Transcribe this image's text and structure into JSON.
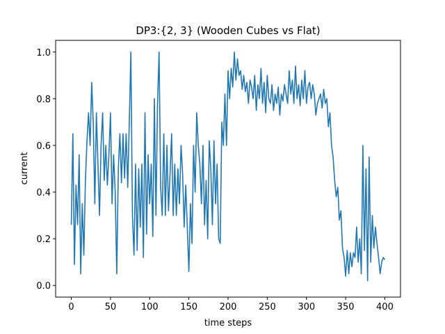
{
  "chart_data": {
    "type": "line",
    "title": "DP3:{2, 3} (Wooden Cubes vs Flat)",
    "xlabel": "time steps",
    "ylabel": "current",
    "x": [
      0,
      2,
      4,
      6,
      8,
      10,
      12,
      14,
      16,
      18,
      20,
      22,
      24,
      26,
      28,
      30,
      32,
      34,
      36,
      38,
      40,
      42,
      44,
      46,
      48,
      50,
      52,
      54,
      56,
      58,
      60,
      62,
      64,
      66,
      68,
      70,
      72,
      74,
      76,
      78,
      80,
      82,
      84,
      86,
      88,
      90,
      92,
      94,
      96,
      98,
      100,
      102,
      104,
      106,
      108,
      110,
      112,
      114,
      116,
      118,
      120,
      122,
      124,
      126,
      128,
      130,
      132,
      134,
      136,
      138,
      140,
      142,
      144,
      146,
      148,
      150,
      152,
      154,
      156,
      158,
      160,
      162,
      164,
      166,
      168,
      170,
      172,
      174,
      176,
      178,
      180,
      182,
      184,
      186,
      188,
      190,
      192,
      194,
      196,
      198,
      200,
      202,
      204,
      206,
      208,
      210,
      212,
      214,
      216,
      218,
      220,
      222,
      224,
      226,
      228,
      230,
      232,
      234,
      236,
      238,
      240,
      242,
      244,
      246,
      248,
      250,
      252,
      254,
      256,
      258,
      260,
      262,
      264,
      266,
      268,
      270,
      272,
      274,
      276,
      278,
      280,
      282,
      284,
      286,
      288,
      290,
      292,
      294,
      296,
      298,
      300,
      302,
      304,
      306,
      308,
      310,
      312,
      314,
      316,
      318,
      320,
      322,
      324,
      326,
      328,
      330,
      332,
      334,
      336,
      338,
      340,
      342,
      344,
      346,
      348,
      350,
      352,
      354,
      356,
      358,
      360,
      362,
      364,
      366,
      368,
      370,
      372,
      374,
      376,
      378,
      380,
      382,
      384,
      386,
      388,
      390,
      392,
      394,
      396,
      398,
      400
    ],
    "series": [
      {
        "color": "#1f77b4",
        "values": [
          0.26,
          0.65,
          0.09,
          0.43,
          0.26,
          0.56,
          0.05,
          0.35,
          0.13,
          0.45,
          0.62,
          0.74,
          0.6,
          0.87,
          0.7,
          0.35,
          0.74,
          0.52,
          0.3,
          0.6,
          0.74,
          0.45,
          0.6,
          0.43,
          0.56,
          0.74,
          0.35,
          0.56,
          0.4,
          0.05,
          0.5,
          0.65,
          0.44,
          0.65,
          0.46,
          0.65,
          0.42,
          0.7,
          1.0,
          0.3,
          0.13,
          0.52,
          0.15,
          0.5,
          0.25,
          0.52,
          0.12,
          0.74,
          0.22,
          0.56,
          0.35,
          0.52,
          0.21,
          0.8,
          0.3,
          0.78,
          1.0,
          0.42,
          0.3,
          0.65,
          0.3,
          0.6,
          0.32,
          0.48,
          0.65,
          0.3,
          0.52,
          0.3,
          0.5,
          0.35,
          0.6,
          0.48,
          0.25,
          0.43,
          0.25,
          0.06,
          0.35,
          0.18,
          0.6,
          0.4,
          0.74,
          0.6,
          0.52,
          0.35,
          0.6,
          0.26,
          0.45,
          0.2,
          0.62,
          0.5,
          0.26,
          0.62,
          0.35,
          0.52,
          0.2,
          0.18,
          0.7,
          0.6,
          0.82,
          0.6,
          0.92,
          0.8,
          0.93,
          0.85,
          1.0,
          0.88,
          0.97,
          0.9,
          0.92,
          0.84,
          0.9,
          0.83,
          0.87,
          0.78,
          0.88,
          0.85,
          0.8,
          0.9,
          0.75,
          0.86,
          0.8,
          0.93,
          0.78,
          0.87,
          0.74,
          0.9,
          0.8,
          0.78,
          0.86,
          0.75,
          0.82,
          0.78,
          0.85,
          0.73,
          0.82,
          0.79,
          0.86,
          0.82,
          0.78,
          0.92,
          0.82,
          0.88,
          0.78,
          0.94,
          0.8,
          0.86,
          0.77,
          0.88,
          0.8,
          0.92,
          0.78,
          0.85,
          0.87,
          0.8,
          0.86,
          0.82,
          0.73,
          0.78,
          0.8,
          0.82,
          0.76,
          0.84,
          0.78,
          0.8,
          0.68,
          0.74,
          0.6,
          0.55,
          0.45,
          0.38,
          0.42,
          0.28,
          0.32,
          0.16,
          0.12,
          0.04,
          0.15,
          0.05,
          0.14,
          0.08,
          0.14,
          0.12,
          0.25,
          0.1,
          0.2,
          0.05,
          0.6,
          0.15,
          0.5,
          0.02,
          0.55,
          0.1,
          0.3,
          0.16,
          0.25,
          0.18,
          0.12,
          0.05,
          0.1,
          0.12,
          0.11
        ]
      }
    ],
    "xlim": [
      -20,
      420
    ],
    "ylim": [
      -0.05,
      1.05
    ],
    "xticks": [
      0,
      50,
      100,
      150,
      200,
      250,
      300,
      350,
      400
    ],
    "yticks": [
      {
        "value": 0,
        "label": "0.0"
      },
      {
        "value": 0.2,
        "label": "0.2"
      },
      {
        "value": 0.4,
        "label": "0.4"
      },
      {
        "value": 0.6,
        "label": "0.6"
      },
      {
        "value": 0.8,
        "label": "0.8"
      },
      {
        "value": 1,
        "label": "1.0"
      }
    ]
  }
}
